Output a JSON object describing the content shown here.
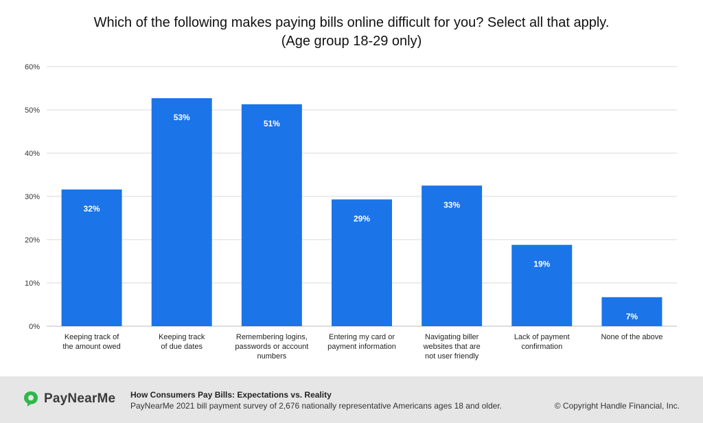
{
  "title": {
    "line1": "Which of the following makes paying bills online difficult for you? Select all that apply.",
    "line2": "(Age group 18-29 only)"
  },
  "chart_data": {
    "type": "bar",
    "categories": [
      [
        "Keeping track of",
        "the amount owed"
      ],
      [
        "Keeping track",
        "of due dates"
      ],
      [
        "Remembering logins,",
        "passwords or account",
        "numbers"
      ],
      [
        "Entering my card or",
        "payment information"
      ],
      [
        "Navigating biller",
        "websites that are",
        "not user friendly"
      ],
      [
        "Lack of payment",
        "confirmation"
      ],
      [
        "None of the above"
      ]
    ],
    "values": [
      32,
      53,
      51,
      29,
      33,
      19,
      7
    ],
    "bar_heights": [
      31.6,
      52.7,
      51.3,
      29.3,
      32.5,
      18.8,
      6.7
    ],
    "data_labels": [
      "32%",
      "53%",
      "51%",
      "29%",
      "33%",
      "19%",
      "7%"
    ],
    "ylim": [
      0,
      60
    ],
    "yticks": [
      0,
      10,
      20,
      30,
      40,
      50,
      60
    ],
    "ytick_labels": [
      "0%",
      "10%",
      "20%",
      "30%",
      "40%",
      "50%",
      "60%"
    ],
    "grid": true,
    "bar_color": "#1b74e8"
  },
  "footer": {
    "brand": "PayNearMe",
    "source_title": "How Consumers Pay Bills: Expectations vs. Reality",
    "source_text": "PayNearMe 2021 bill payment survey of 2,676 nationally representative Americans ages 18 and older.",
    "copyright": "© Copyright Handle Financial, Inc.",
    "brand_color": "#2db84b"
  }
}
